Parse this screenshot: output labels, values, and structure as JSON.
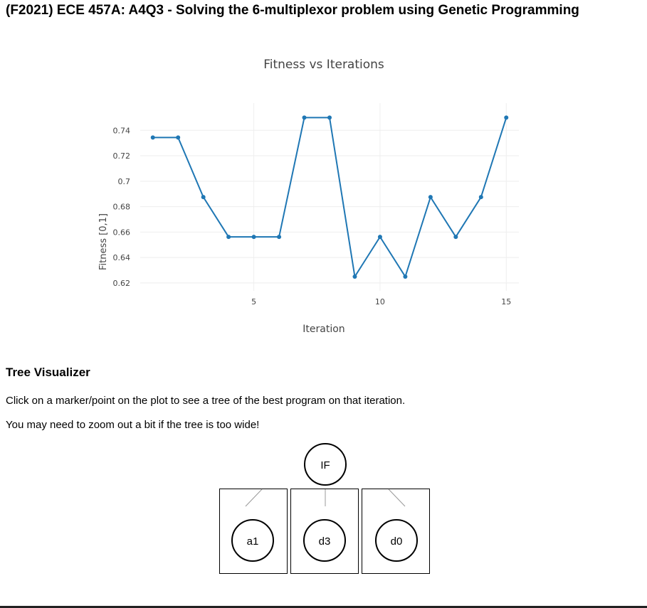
{
  "page": {
    "title": "(F2021) ECE 457A: A4Q3 - Solving the 6-multiplexor problem using Genetic Programming"
  },
  "chart_data": {
    "type": "line",
    "title": "Fitness vs Iterations",
    "xlabel": "Iteration",
    "ylabel": "Fitness [0,1]",
    "x": [
      1,
      2,
      3,
      4,
      5,
      6,
      7,
      8,
      9,
      10,
      11,
      12,
      13,
      14,
      15
    ],
    "series": [
      {
        "color": "#1f77b4",
        "values": [
          0.734375,
          0.734375,
          0.6875,
          0.65625,
          0.65625,
          0.65625,
          0.75,
          0.75,
          0.625,
          0.65625,
          0.625,
          0.6875,
          0.65625,
          0.6875,
          0.75
        ]
      }
    ],
    "xlim": [
      0.5,
      15.5
    ],
    "ylim": [
      0.6138,
      0.7614
    ],
    "xticks": [
      5,
      10,
      15
    ],
    "yticks": [
      0.62,
      0.64,
      0.66,
      0.68,
      0.7,
      0.72,
      0.74
    ],
    "ytick_labels": [
      "0.62",
      "0.64",
      "0.66",
      "0.68",
      "0.7",
      "0.72",
      "0.74"
    ],
    "grid": true,
    "legend": "none"
  },
  "tree_visualizer": {
    "heading": "Tree Visualizer",
    "instruction": "Click on a marker/point on the plot to see a tree of the best program on that iteration.",
    "hint": "You may need to zoom out a bit if the tree is too wide!",
    "root": {
      "label": "IF"
    },
    "children": [
      {
        "label": "a1"
      },
      {
        "label": "d3"
      },
      {
        "label": "d0"
      }
    ]
  }
}
